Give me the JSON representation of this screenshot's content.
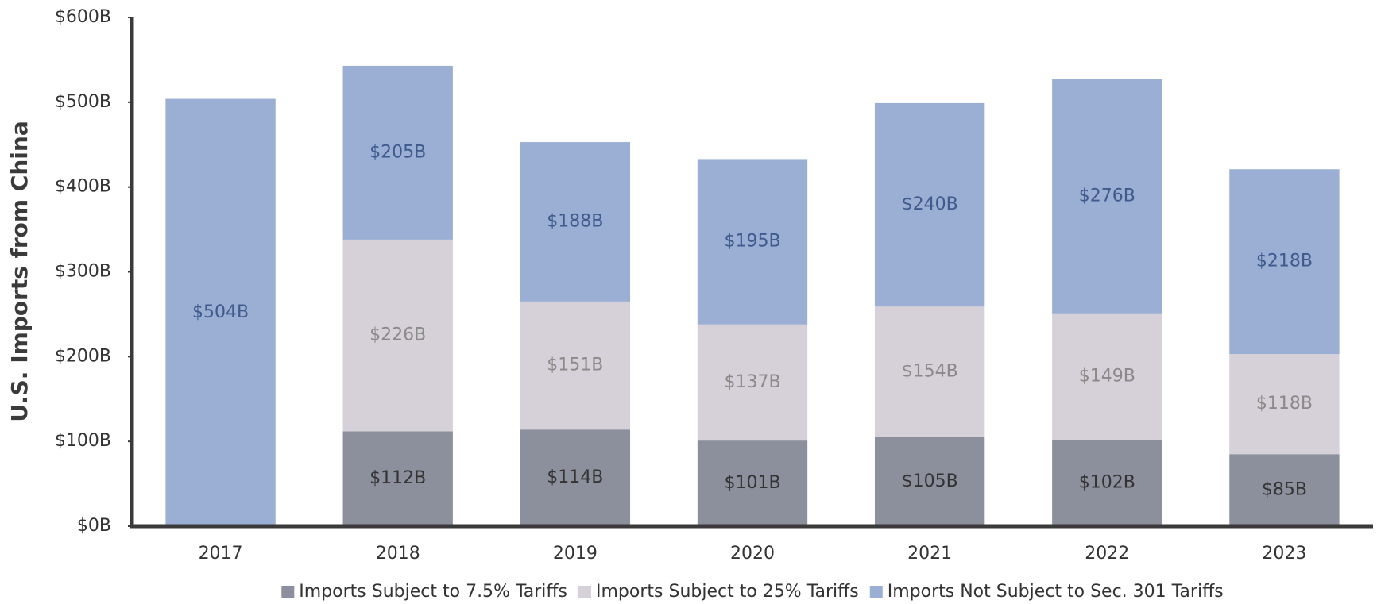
{
  "chart_data": {
    "type": "bar",
    "stacked": true,
    "y_label": "U.S. Imports from China",
    "categories": [
      "2017",
      "2018",
      "2019",
      "2020",
      "2021",
      "2022",
      "2023"
    ],
    "series": [
      {
        "name": "Imports Subject to 7.5% Tariffs",
        "color": "#8c8f9c",
        "label_color": "#333333",
        "values": [
          null,
          112,
          114,
          101,
          105,
          102,
          85
        ],
        "value_labels": [
          null,
          "$112B",
          "$114B",
          "$101B",
          "$105B",
          "$102B",
          "$85B"
        ]
      },
      {
        "name": "Imports Subject to 25% Tariffs",
        "color": "#d6d0d8",
        "label_color": "#8a8a8a",
        "values": [
          null,
          226,
          151,
          137,
          154,
          149,
          118
        ],
        "value_labels": [
          null,
          "$226B",
          "$151B",
          "$137B",
          "$154B",
          "$149B",
          "$118B"
        ]
      },
      {
        "name": "Imports Not Subject to Sec. 301 Tariffs",
        "color": "#9baed3",
        "label_color": "#3f5a8c",
        "values": [
          504,
          205,
          188,
          195,
          240,
          276,
          218
        ],
        "value_labels": [
          "$504B",
          "$205B",
          "$188B",
          "$195B",
          "$240B",
          "$276B",
          "$218B"
        ]
      }
    ],
    "ylim": [
      0,
      600
    ],
    "yticks": [
      {
        "value": 0,
        "label": "$0B"
      },
      {
        "value": 100,
        "label": "$100B"
      },
      {
        "value": 200,
        "label": "$200B"
      },
      {
        "value": 300,
        "label": "$300B"
      },
      {
        "value": 400,
        "label": "$400B"
      },
      {
        "value": 500,
        "label": "$500B"
      },
      {
        "value": 600,
        "label": "$600B"
      }
    ],
    "legend": "bottom",
    "grid": false
  }
}
